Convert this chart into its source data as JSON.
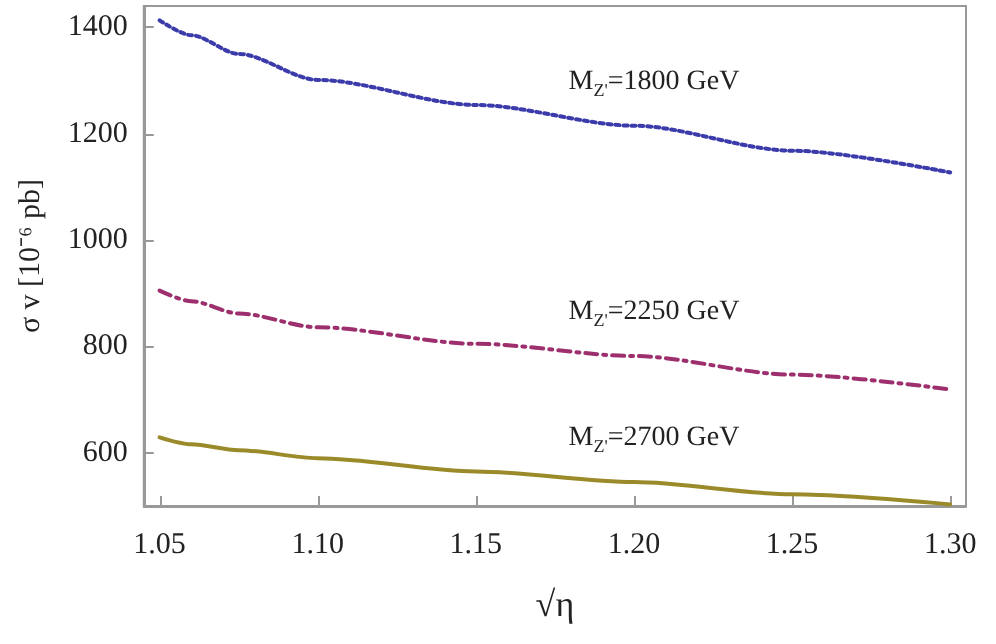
{
  "chart_data": {
    "type": "line",
    "xlabel": "√η",
    "ylabel": "σ v [10⁻⁶ pb]",
    "xlim": [
      1.045,
      1.305
    ],
    "ylim": [
      500,
      1440
    ],
    "xticks": [
      {
        "value": 1.05,
        "label": "1.05"
      },
      {
        "value": 1.1,
        "label": "1.10"
      },
      {
        "value": 1.15,
        "label": "1.15"
      },
      {
        "value": 1.2,
        "label": "1.20"
      },
      {
        "value": 1.25,
        "label": "1.25"
      },
      {
        "value": 1.3,
        "label": "1.30"
      }
    ],
    "yticks": [
      600,
      800,
      1000,
      1200,
      1400
    ],
    "x": [
      1.05,
      1.06,
      1.075,
      1.1,
      1.15,
      1.2,
      1.25,
      1.3
    ],
    "series": [
      {
        "color": "#3b3bab",
        "line_style": "dotted",
        "values": [
          1413,
          1385,
          1350,
          1301,
          1254,
          1215,
          1168,
          1127
        ]
      },
      {
        "color": "#9e2f6e",
        "line_style": "dashed",
        "values": [
          905,
          885,
          862,
          836,
          805,
          782,
          747,
          719
        ]
      },
      {
        "color": "#9a8a2a",
        "line_style": "solid",
        "values": [
          629,
          616,
          605,
          590,
          565,
          545,
          522,
          503
        ]
      }
    ],
    "annotations": [
      "M$_{Z'}$=1800 GeV",
      "M$_{Z'}$=2250 GeV",
      "M$_{Z'}$=2700 GeV"
    ],
    "grid": false,
    "marker": "none"
  }
}
